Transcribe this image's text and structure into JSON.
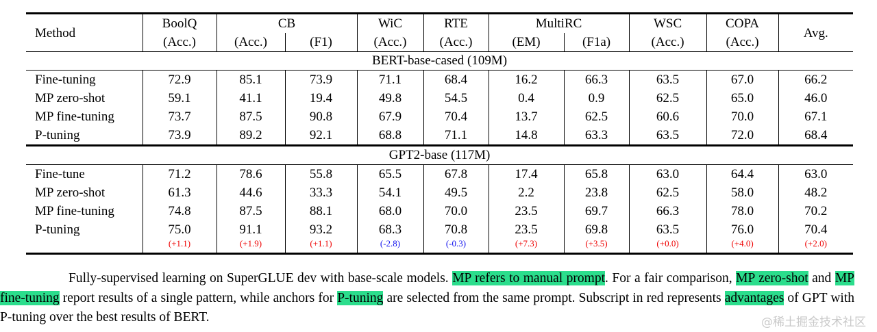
{
  "colors": {
    "highlight": "#2bdd8c",
    "subscript_positive": "#ee0000",
    "subscript_negative": "#1414ee",
    "watermark": "#c9c9c9"
  },
  "chart_data": {
    "type": "table",
    "title": "Fully-supervised learning on SuperGLUE dev with base-scale models",
    "columns": [
      "Method",
      "BoolQ (Acc.)",
      "CB (Acc.)",
      "CB (F1)",
      "WiC (Acc.)",
      "RTE (Acc.)",
      "MultiRC (EM)",
      "MultiRC (F1a)",
      "WSC (Acc.)",
      "COPA (Acc.)",
      "Avg."
    ],
    "sections": [
      {
        "title": "BERT-base-cased (109M)",
        "rows": [
          {
            "method": "Fine-tuning",
            "values": [
              72.9,
              85.1,
              73.9,
              71.1,
              68.4,
              16.2,
              66.3,
              63.5,
              67.0,
              66.2
            ]
          },
          {
            "method": "MP zero-shot",
            "values": [
              59.1,
              41.1,
              19.4,
              49.8,
              54.5,
              0.4,
              0.9,
              62.5,
              65.0,
              46.0
            ]
          },
          {
            "method": "MP fine-tuning",
            "values": [
              73.7,
              87.5,
              90.8,
              67.9,
              70.4,
              13.7,
              62.5,
              60.6,
              70.0,
              67.1
            ]
          },
          {
            "method": "P-tuning",
            "values": [
              73.9,
              89.2,
              92.1,
              68.8,
              71.1,
              14.8,
              63.3,
              63.5,
              72.0,
              68.4
            ]
          }
        ]
      },
      {
        "title": "GPT2-base (117M)",
        "rows": [
          {
            "method": "Fine-tune",
            "values": [
              71.2,
              78.6,
              55.8,
              65.5,
              67.8,
              17.4,
              65.8,
              63.0,
              64.4,
              63.0
            ]
          },
          {
            "method": "MP zero-shot",
            "values": [
              61.3,
              44.6,
              33.3,
              54.1,
              49.5,
              2.2,
              23.8,
              62.5,
              58.0,
              48.2
            ]
          },
          {
            "method": "MP fine-tuning",
            "values": [
              74.8,
              87.5,
              88.1,
              68.0,
              70.0,
              23.5,
              69.7,
              66.3,
              78.0,
              70.2
            ]
          },
          {
            "method": "P-tuning",
            "values": [
              75.0,
              91.1,
              93.2,
              68.3,
              70.8,
              23.5,
              69.8,
              63.5,
              76.0,
              70.4
            ],
            "subscripts": [
              "(+1.1)",
              "(+1.9)",
              "(+1.1)",
              "(-2.8)",
              "(-0.3)",
              "(+7.3)",
              "(+3.5)",
              "(+0.0)",
              "(+4.0)",
              "(+2.0)"
            ]
          }
        ]
      }
    ]
  },
  "table": {
    "header": {
      "method": "Method",
      "avg": "Avg.",
      "groups": [
        {
          "label": "BoolQ",
          "subs": [
            "(Acc.)"
          ]
        },
        {
          "label": "CB",
          "subs": [
            "(Acc.)",
            "(F1)"
          ]
        },
        {
          "label": "WiC",
          "subs": [
            "(Acc.)"
          ]
        },
        {
          "label": "RTE",
          "subs": [
            "(Acc.)"
          ]
        },
        {
          "label": "MultiRC",
          "subs": [
            "(EM)",
            "(F1a)"
          ]
        },
        {
          "label": "WSC",
          "subs": [
            "(Acc.)"
          ]
        },
        {
          "label": "COPA",
          "subs": [
            "(Acc.)"
          ]
        }
      ]
    },
    "sections": [
      {
        "title": "BERT-base-cased (109M)",
        "rows": [
          {
            "method": "Fine-tuning",
            "values": [
              "72.9",
              "85.1",
              "73.9",
              "71.1",
              "68.4",
              "16.2",
              "66.3",
              "63.5",
              "67.0",
              "66.2"
            ]
          },
          {
            "method": "MP zero-shot",
            "values": [
              "59.1",
              "41.1",
              "19.4",
              "49.8",
              "54.5",
              "0.4",
              "0.9",
              "62.5",
              "65.0",
              "46.0"
            ]
          },
          {
            "method": "MP fine-tuning",
            "values": [
              "73.7",
              "87.5",
              "90.8",
              "67.9",
              "70.4",
              "13.7",
              "62.5",
              "60.6",
              "70.0",
              "67.1"
            ]
          },
          {
            "method": "P-tuning",
            "values": [
              "73.9",
              "89.2",
              "92.1",
              "68.8",
              "71.1",
              "14.8",
              "63.3",
              "63.5",
              "72.0",
              "68.4"
            ]
          }
        ]
      },
      {
        "title": "GPT2-base (117M)",
        "rows": [
          {
            "method": "Fine-tune",
            "values": [
              "71.2",
              "78.6",
              "55.8",
              "65.5",
              "67.8",
              "17.4",
              "65.8",
              "63.0",
              "64.4",
              "63.0"
            ]
          },
          {
            "method": "MP zero-shot",
            "values": [
              "61.3",
              "44.6",
              "33.3",
              "54.1",
              "49.5",
              "2.2",
              "23.8",
              "62.5",
              "58.0",
              "48.2"
            ]
          },
          {
            "method": "MP fine-tuning",
            "values": [
              "74.8",
              "87.5",
              "88.1",
              "68.0",
              "70.0",
              "23.5",
              "69.7",
              "66.3",
              "78.0",
              "70.2"
            ]
          },
          {
            "method": "P-tuning",
            "values": [
              "75.0",
              "91.1",
              "93.2",
              "68.3",
              "70.8",
              "23.5",
              "69.8",
              "63.5",
              "76.0",
              "70.4"
            ],
            "subscripts": [
              "(+1.1)",
              "(+1.9)",
              "(+1.1)",
              "(-2.8)",
              "(-0.3)",
              "(+7.3)",
              "(+3.5)",
              "(+0.0)",
              "(+4.0)",
              "(+2.0)"
            ]
          }
        ]
      }
    ]
  },
  "caption": {
    "segments": [
      {
        "text": "Fully-supervised learning on SuperGLUE dev with base-scale models. ",
        "highlight": false
      },
      {
        "text": "MP refers to manual prompt",
        "highlight": true
      },
      {
        "text": ". For a fair comparison, ",
        "highlight": false
      },
      {
        "text": "MP zero-shot",
        "highlight": true
      },
      {
        "text": " and ",
        "highlight": false
      },
      {
        "text": "MP fine-tuning",
        "highlight": true
      },
      {
        "text": " report results of a single pattern, while anchors for ",
        "highlight": false
      },
      {
        "text": "P-tuning",
        "highlight": true
      },
      {
        "text": " are selected from the same prompt. Subscript in red represents ",
        "highlight": false
      },
      {
        "text": "advantages",
        "highlight": true
      },
      {
        "text": " of GPT with P-tuning over the best results of BERT.",
        "highlight": false
      }
    ]
  },
  "watermark": "@稀土掘金技术社区"
}
